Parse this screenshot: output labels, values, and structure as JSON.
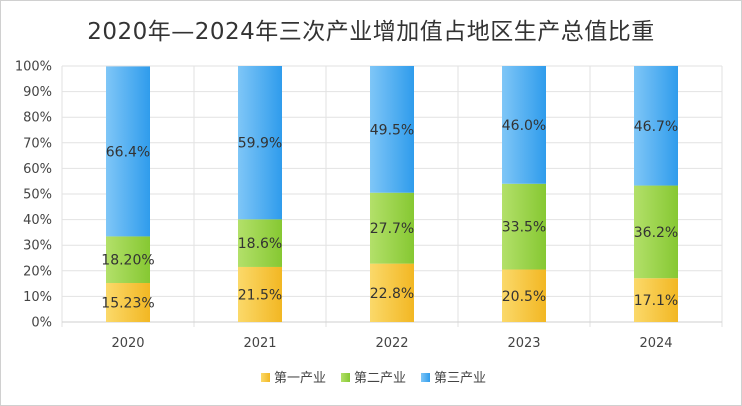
{
  "chart_data": {
    "type": "bar",
    "stacked": true,
    "title": "2020年—2024年三次产业增加值占地区生产总值比重",
    "categories": [
      "2020",
      "2021",
      "2022",
      "2023",
      "2024"
    ],
    "series": [
      {
        "name": "第一产业",
        "values": [
          15.23,
          21.5,
          22.8,
          20.5,
          17.1
        ],
        "labels": [
          "15.23%",
          "21.5%",
          "22.8%",
          "20.5%",
          "17.1%"
        ],
        "color": "#f7c542"
      },
      {
        "name": "第二产业",
        "values": [
          18.2,
          18.6,
          27.7,
          33.5,
          36.2
        ],
        "labels": [
          "18.20%",
          "18.6%",
          "27.7%",
          "33.5%",
          "36.2%"
        ],
        "color": "#9ad64a"
      },
      {
        "name": "第三产业",
        "values": [
          66.4,
          59.9,
          49.5,
          46.0,
          46.7
        ],
        "labels": [
          "66.4%",
          "59.9%",
          "49.5%",
          "46.0%",
          "46.7%"
        ],
        "color": "#4aaef2"
      }
    ],
    "ylim": [
      0,
      100
    ],
    "yticks": [
      "0%",
      "10%",
      "20%",
      "30%",
      "40%",
      "50%",
      "60%",
      "70%",
      "80%",
      "90%",
      "100%"
    ],
    "grid": true,
    "legend": "bottom"
  }
}
